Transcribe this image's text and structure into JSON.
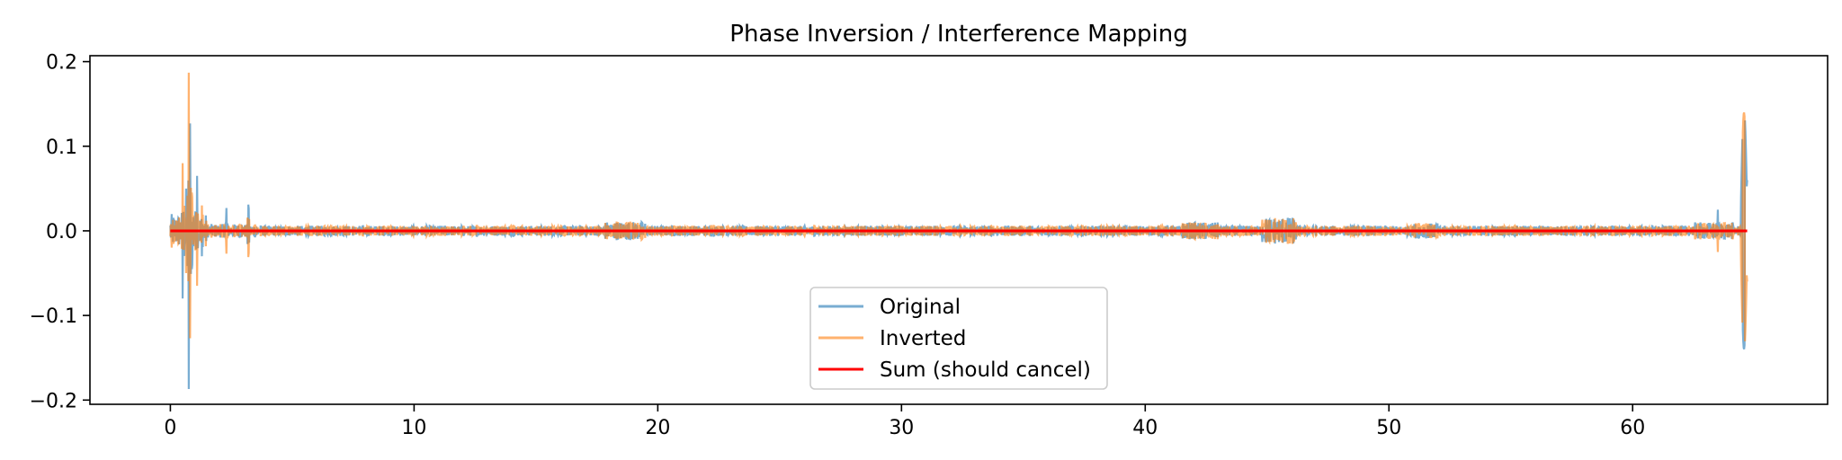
{
  "chart_data": {
    "type": "line",
    "title": "Phase Inversion / Interference Mapping",
    "xlabel": "",
    "ylabel": "",
    "xlim": [
      -3.3,
      68.0
    ],
    "ylim": [
      -0.205,
      0.207
    ],
    "xticks": [
      0,
      10,
      20,
      30,
      40,
      50,
      60
    ],
    "xtick_labels": [
      "0",
      "10",
      "20",
      "30",
      "40",
      "50",
      "60"
    ],
    "yticks": [
      -0.2,
      -0.1,
      0.0,
      0.1,
      0.2
    ],
    "ytick_labels": [
      "−0.2",
      "−0.1",
      "0.0",
      "0.1",
      "0.2"
    ],
    "grid": false,
    "legend": {
      "position": "lower center",
      "entries": [
        "Original",
        "Inverted",
        "Sum (should cancel)"
      ]
    },
    "series": [
      {
        "name": "Original",
        "color": "#1f77b4",
        "alpha": 0.6,
        "description_points": {
          "x": [
            0.0,
            0.3,
            0.5,
            0.65,
            0.75,
            0.8,
            0.9,
            1.1,
            1.3,
            2.3,
            3.2,
            5,
            10,
            15,
            18.5,
            19,
            22,
            26,
            30,
            35,
            40,
            42,
            45.5,
            47,
            50,
            55,
            60,
            63.5,
            64.5,
            64.6,
            64.7
          ],
          "y": [
            0.0,
            0.02,
            -0.08,
            0.05,
            -0.187,
            0.127,
            -0.04,
            0.065,
            -0.03,
            0.027,
            0.031,
            0.008,
            0.006,
            0.007,
            0.013,
            -0.014,
            0.008,
            0.007,
            0.006,
            0.006,
            0.01,
            0.012,
            -0.02,
            0.012,
            0.01,
            0.009,
            0.01,
            0.025,
            -0.142,
            0.14,
            0.06
          ]
        }
      },
      {
        "name": "Inverted",
        "color": "#ff7f0e",
        "alpha": 0.6,
        "description_points": {
          "x": [
            0.0,
            0.3,
            0.5,
            0.65,
            0.75,
            0.8,
            0.9,
            1.1,
            1.3,
            2.3,
            3.2,
            5,
            10,
            15,
            18.5,
            19,
            22,
            26,
            30,
            35,
            40,
            42,
            45.5,
            47,
            50,
            55,
            60,
            63.5,
            64.5,
            64.6,
            64.7
          ],
          "y": [
            0.0,
            -0.02,
            0.08,
            -0.05,
            0.187,
            -0.127,
            0.04,
            -0.065,
            0.03,
            -0.027,
            -0.031,
            -0.008,
            -0.006,
            -0.007,
            -0.013,
            0.014,
            -0.008,
            -0.007,
            -0.006,
            -0.006,
            -0.01,
            -0.012,
            0.02,
            -0.012,
            -0.01,
            -0.009,
            -0.01,
            -0.025,
            0.142,
            -0.14,
            -0.06
          ]
        }
      },
      {
        "name": "Sum (should cancel)",
        "color": "#ff0000",
        "alpha": 1.0,
        "x": [
          0.0,
          64.7
        ],
        "y": [
          0.0,
          0.0
        ]
      }
    ],
    "duration": 64.7
  }
}
